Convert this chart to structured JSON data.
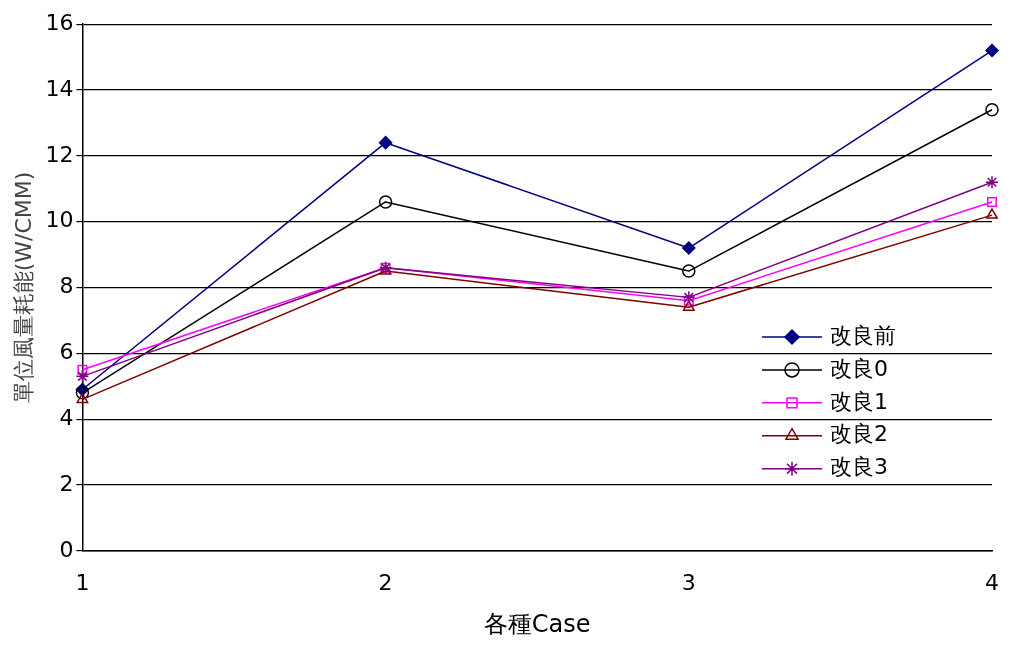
{
  "chart_data": {
    "type": "line",
    "xlabel": "各種Case",
    "ylabel": "單位風量耗能(W/CMM)",
    "x": [
      1,
      2,
      3,
      4
    ],
    "xlim": [
      1,
      4
    ],
    "xticks": [
      1,
      2,
      3,
      4
    ],
    "ylim": [
      0,
      16
    ],
    "yticks": [
      0,
      2,
      4,
      6,
      8,
      10,
      12,
      14,
      16
    ],
    "grid": "y",
    "legend": "right",
    "line_style": "solid",
    "series": [
      {
        "name": "改良前",
        "color": "#000080",
        "marker": "diamond",
        "values": [
          4.9,
          12.4,
          9.2,
          15.2
        ]
      },
      {
        "name": "改良0",
        "color": "#000000",
        "marker": "circle",
        "values": [
          4.8,
          10.6,
          8.5,
          13.4
        ]
      },
      {
        "name": "改良1",
        "color": "#ff00ff",
        "marker": "square",
        "values": [
          5.5,
          8.6,
          7.6,
          10.6
        ]
      },
      {
        "name": "改良2",
        "color": "#800000",
        "marker": "triangle",
        "values": [
          4.6,
          8.5,
          7.4,
          10.2
        ]
      },
      {
        "name": "改良3",
        "color": "#800080",
        "marker": "cross",
        "values": [
          5.3,
          8.6,
          7.7,
          11.2
        ]
      }
    ]
  }
}
